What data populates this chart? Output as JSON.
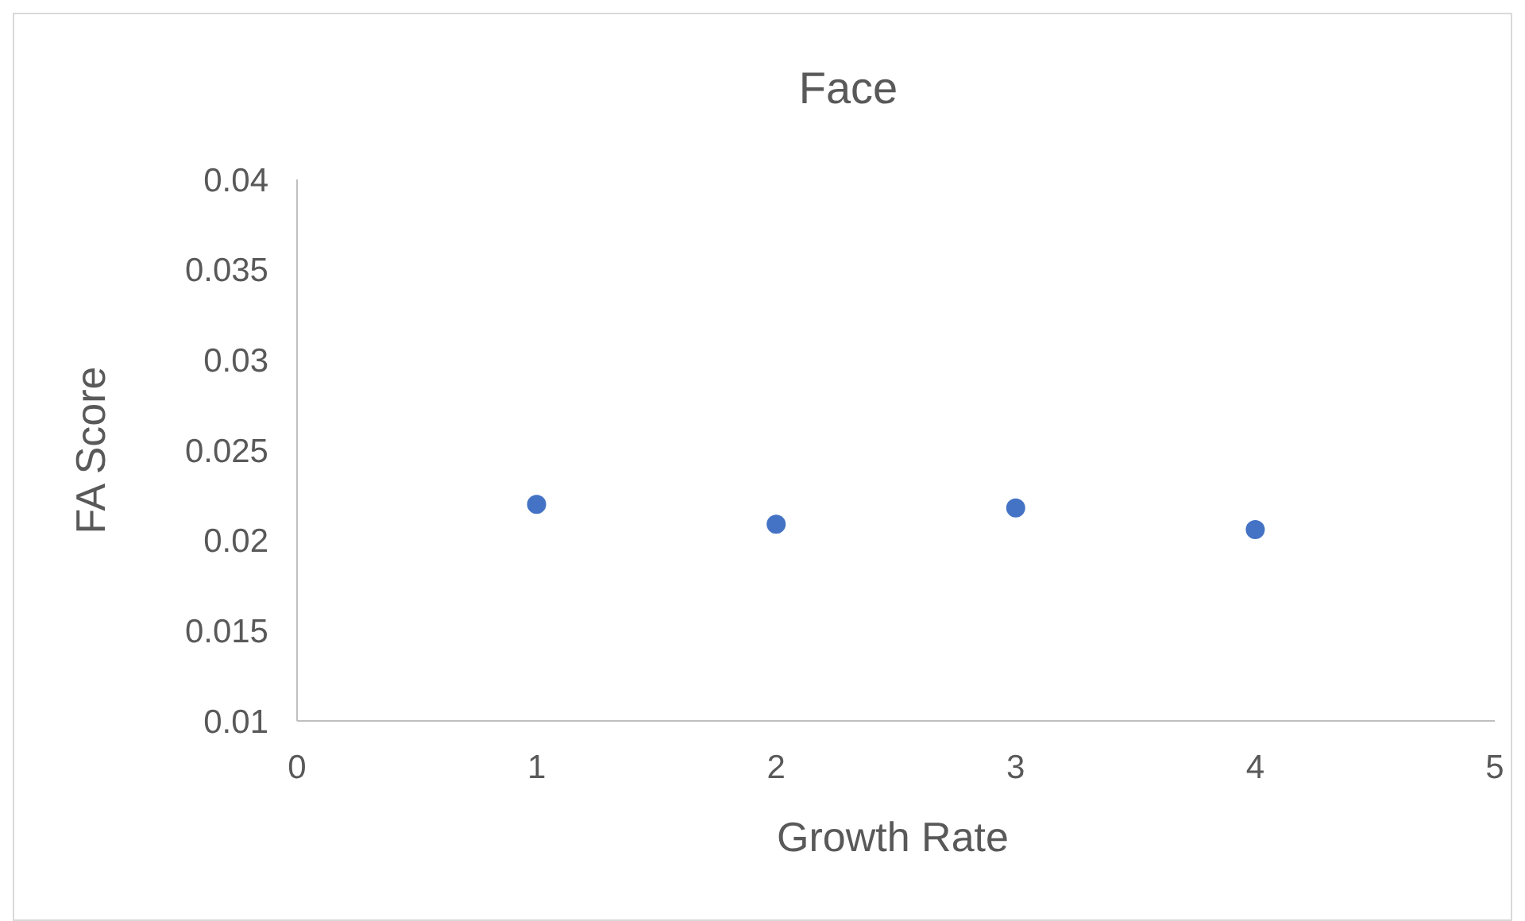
{
  "chart_data": {
    "type": "scatter",
    "title": "Face",
    "xlabel": "Growth Rate",
    "ylabel": "FA Score",
    "x": [
      1,
      2,
      3,
      4
    ],
    "series": [
      {
        "color": "#4472c4",
        "values": [
          0.022,
          0.0209,
          0.0218,
          0.0206
        ]
      }
    ],
    "xlim": [
      0,
      5
    ],
    "xticks": [
      0,
      1,
      2,
      3,
      4,
      5
    ],
    "ylim": [
      0.01,
      0.04
    ],
    "yticks": [
      0.01,
      0.015,
      0.02,
      0.025,
      0.03,
      0.035,
      0.04
    ],
    "marker": "circle"
  }
}
